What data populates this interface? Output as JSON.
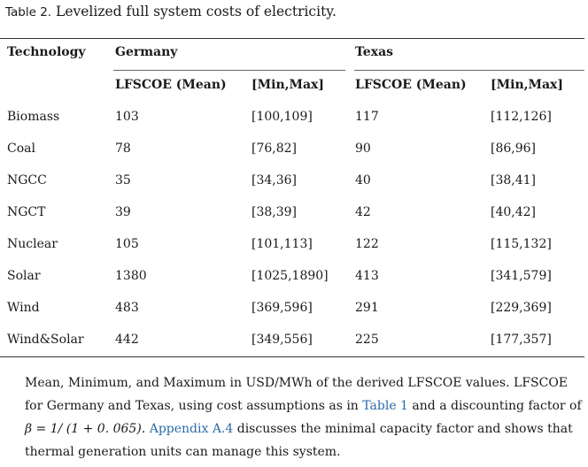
{
  "caption": {
    "label": "Table 2.",
    "title": "Levelized full system costs of electricity."
  },
  "table": {
    "header_technology": "Technology",
    "group_germany": "Germany",
    "group_texas": "Texas",
    "sub_mean": "LFSCOE (Mean)",
    "sub_minmax": "[Min,Max]",
    "rows": [
      {
        "tech": "Biomass",
        "de_mean": "103",
        "de_range": "[100,109]",
        "tx_mean": "117",
        "tx_range": "[112,126]"
      },
      {
        "tech": "Coal",
        "de_mean": "78",
        "de_range": "[76,82]",
        "tx_mean": "90",
        "tx_range": "[86,96]"
      },
      {
        "tech": "NGCC",
        "de_mean": "35",
        "de_range": "[34,36]",
        "tx_mean": "40",
        "tx_range": "[38,41]"
      },
      {
        "tech": "NGCT",
        "de_mean": "39",
        "de_range": "[38,39]",
        "tx_mean": "42",
        "tx_range": "[40,42]"
      },
      {
        "tech": "Nuclear",
        "de_mean": "105",
        "de_range": "[101,113]",
        "tx_mean": "122",
        "tx_range": "[115,132]"
      },
      {
        "tech": "Solar",
        "de_mean": "1380",
        "de_range": "[1025,1890]",
        "tx_mean": "413",
        "tx_range": "[341,579]"
      },
      {
        "tech": "Wind",
        "de_mean": "483",
        "de_range": "[369,596]",
        "tx_mean": "291",
        "tx_range": "[229,369]"
      },
      {
        "tech": "Wind&Solar",
        "de_mean": "442",
        "de_range": "[349,556]",
        "tx_mean": "225",
        "tx_range": "[177,357]"
      }
    ]
  },
  "footnote": {
    "part1": "Mean, Minimum, and Maximum in USD/MWh of the derived LFSCOE values. LFSCOE for Germany and Texas, using cost assumptions as in ",
    "link1": "Table 1",
    "part2": " and a discounting factor of ",
    "math": "β = 1/ (1 + 0. 065).",
    "link2": "Appendix A.4",
    "part3": " discusses the minimal capacity factor and shows that thermal generation units can manage this system."
  }
}
